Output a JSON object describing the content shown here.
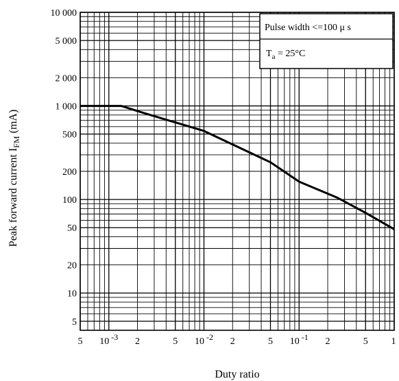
{
  "chart_data": {
    "type": "line",
    "title": "",
    "xlabel": "Duty ratio",
    "ylabel": "Peak forward current I",
    "ylabel_sub": "FM",
    "ylabel_unit": "(mA)",
    "x_scale": "log",
    "y_scale": "log",
    "xlim": [
      0.0005,
      1
    ],
    "ylim": [
      4,
      10000
    ],
    "grid": true,
    "series": [
      {
        "x": [
          0.0005,
          0.00135,
          0.00224,
          0.01,
          0.05,
          0.1,
          0.25,
          0.5,
          1
        ],
        "y": [
          1000,
          1000,
          850,
          540,
          250,
          155,
          105,
          72,
          48
        ]
      }
    ],
    "x_tick_labels": [
      {
        "value": 0.0005,
        "mantissa": "5",
        "exp": ""
      },
      {
        "value": 0.001,
        "mantissa": "10",
        "exp": "-3"
      },
      {
        "value": 0.002,
        "mantissa": "2",
        "exp": ""
      },
      {
        "value": 0.005,
        "mantissa": "5",
        "exp": ""
      },
      {
        "value": 0.01,
        "mantissa": "10",
        "exp": "-2"
      },
      {
        "value": 0.02,
        "mantissa": "2",
        "exp": ""
      },
      {
        "value": 0.05,
        "mantissa": "5",
        "exp": ""
      },
      {
        "value": 0.1,
        "mantissa": "10",
        "exp": "-1"
      },
      {
        "value": 0.2,
        "mantissa": "2",
        "exp": ""
      },
      {
        "value": 0.5,
        "mantissa": "5",
        "exp": ""
      },
      {
        "value": 1,
        "mantissa": "1",
        "exp": ""
      }
    ],
    "y_tick_labels": [
      {
        "value": 10000,
        "label": "10 000"
      },
      {
        "value": 5000,
        "label": "5 000"
      },
      {
        "value": 2000,
        "label": "2 000"
      },
      {
        "value": 1000,
        "label": "1 000"
      },
      {
        "value": 500,
        "label": "500"
      },
      {
        "value": 200,
        "label": "200"
      },
      {
        "value": 100,
        "label": "100"
      },
      {
        "value": 50,
        "label": "50"
      },
      {
        "value": 20,
        "label": "20"
      },
      {
        "value": 10,
        "label": "10"
      },
      {
        "value": 5,
        "label": "5"
      }
    ],
    "annotations": {
      "pulse_width": "Pulse width  <=100 μ s",
      "temp_main": "T",
      "temp_sub": "a",
      "temp_value": " = 25°C"
    },
    "colors": {
      "line": "#000000",
      "grid": "#000000",
      "background": "#ffffff"
    }
  }
}
